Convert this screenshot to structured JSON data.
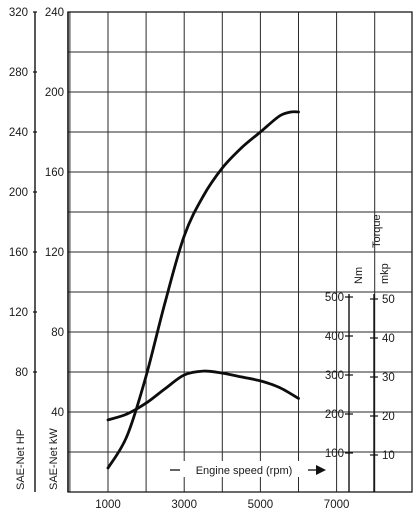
{
  "chart_data": {
    "type": "line",
    "title": "",
    "xlabel": "Engine speed (rpm)",
    "xlim": [
      0,
      8000
    ],
    "x_ticks": [
      1000,
      3000,
      5000,
      7000
    ],
    "grid": true,
    "axes": {
      "hp": {
        "label": "SAE-Net HP",
        "ticks": [
          80,
          120,
          160,
          200,
          240,
          280,
          320
        ]
      },
      "kw": {
        "label": "SAE-Net kW",
        "ticks": [
          40,
          80,
          120,
          160,
          200,
          240
        ]
      },
      "nm": {
        "label": "Nm",
        "ticks": [
          100,
          200,
          300,
          400,
          500
        ]
      },
      "mkp": {
        "label": "mkp",
        "ticks": [
          10,
          20,
          30,
          40,
          50
        ]
      },
      "torque_label": "Torque"
    },
    "series": [
      {
        "axis": "kw",
        "x": [
          1000,
          1500,
          2000,
          2500,
          3000,
          3500,
          4000,
          4500,
          5000,
          5500,
          5800,
          6000
        ],
        "y": [
          12,
          28,
          58,
          95,
          128,
          148,
          162,
          172,
          180,
          188,
          190,
          190
        ]
      },
      {
        "axis": "nm",
        "x": [
          1000,
          1500,
          2000,
          2500,
          3000,
          3500,
          4000,
          4500,
          5000,
          5500,
          6000
        ],
        "y": [
          185,
          200,
          228,
          265,
          300,
          310,
          305,
          295,
          285,
          268,
          240
        ]
      }
    ]
  }
}
